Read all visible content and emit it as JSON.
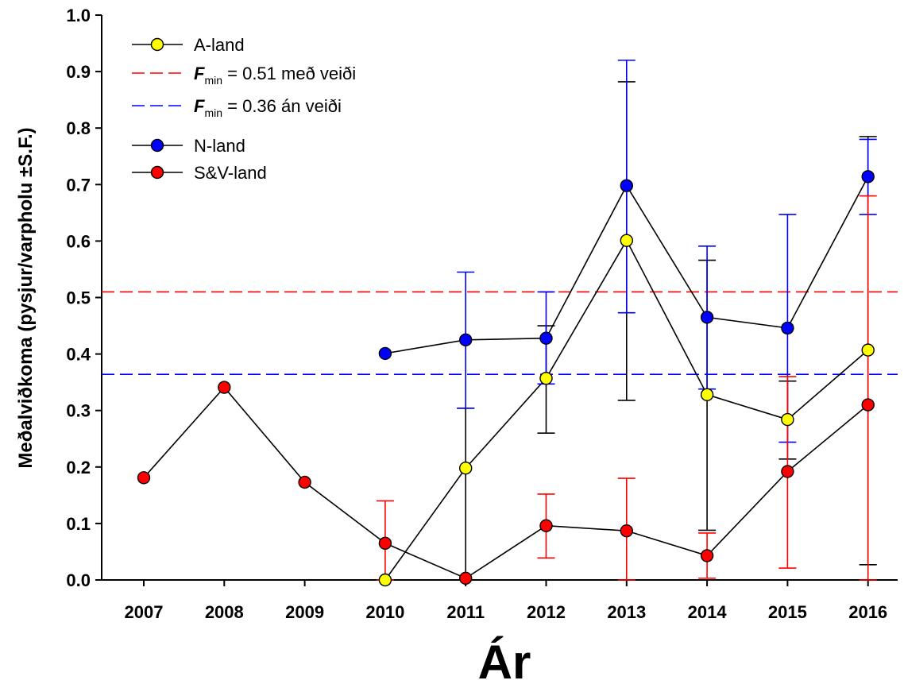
{
  "chart_data": {
    "type": "line",
    "xlabel": "Ár",
    "ylabel": "Meðalviðkoma (pysjur/varpholu ±S.F.)",
    "categories": [
      "2007",
      "2008",
      "2009",
      "2010",
      "2011",
      "2012",
      "2013",
      "2014",
      "2015",
      "2016"
    ],
    "ylim": [
      0.0,
      1.0
    ],
    "yticks": [
      "0.0",
      "0.1",
      "0.2",
      "0.3",
      "0.4",
      "0.5",
      "0.6",
      "0.7",
      "0.8",
      "0.9",
      "1.0"
    ],
    "grid": false,
    "legend_position": "top-left",
    "series": [
      {
        "name": "A-land",
        "color": "#ffff00",
        "error_color": "#000000",
        "values": [
          null,
          null,
          null,
          0.0,
          0.198,
          0.357,
          0.601,
          0.328,
          0.284,
          0.407
        ],
        "err_low": [
          null,
          null,
          null,
          null,
          0.0,
          0.26,
          0.318,
          0.088,
          0.214,
          0.027
        ],
        "err_high": [
          null,
          null,
          null,
          null,
          0.304,
          0.45,
          0.882,
          0.566,
          0.352,
          0.785
        ]
      },
      {
        "name": "N-land",
        "color": "#0000ff",
        "error_color": "#0000ff",
        "values": [
          null,
          null,
          null,
          0.401,
          0.425,
          0.428,
          0.698,
          0.465,
          0.446,
          0.714
        ],
        "err_low": [
          null,
          null,
          null,
          null,
          0.304,
          0.347,
          0.473,
          0.338,
          0.244,
          0.647
        ],
        "err_high": [
          null,
          null,
          null,
          null,
          0.545,
          0.51,
          0.92,
          0.591,
          0.647,
          0.78
        ]
      },
      {
        "name": "S&V-land",
        "color": "#ff0000",
        "error_color": "#ff0000",
        "values": [
          0.181,
          0.341,
          0.173,
          0.065,
          0.003,
          0.096,
          0.087,
          0.043,
          0.192,
          0.31
        ],
        "err_low": [
          null,
          null,
          null,
          0.0,
          null,
          0.039,
          0.0,
          0.003,
          0.021,
          0.0
        ],
        "err_high": [
          null,
          null,
          null,
          0.14,
          null,
          0.152,
          0.18,
          0.083,
          0.36,
          0.68
        ]
      }
    ],
    "reference_lines": [
      {
        "label_sym": "F",
        "label_sub": "min",
        "label_rest": " = 0.51 með veiði",
        "value": 0.51,
        "color": "#ff0000"
      },
      {
        "label_sym": "F",
        "label_sub": "min",
        "label_rest": " = 0.36 án veiði",
        "value": 0.364,
        "color": "#0000ff"
      }
    ]
  }
}
